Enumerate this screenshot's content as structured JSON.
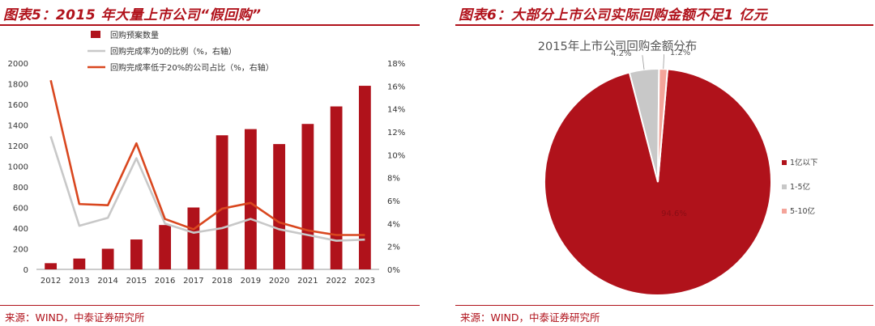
{
  "left": {
    "title": "图表5：2015 年大量上市公司“假回购”",
    "source": "来源：WIND，中泰证券研究所"
  },
  "right": {
    "title": "图表6：大部分上市公司实际回购金额不足1 亿元",
    "source": "来源：WIND，中泰证券研究所"
  },
  "colors": {
    "accent": "#b0121b",
    "grey_line": "#c8c8c8",
    "orange_line": "#d9471f",
    "pink": "#f4a49a"
  },
  "chart_data": [
    {
      "type": "bar",
      "title": "",
      "categories": [
        "2012",
        "2013",
        "2014",
        "2015",
        "2016",
        "2017",
        "2018",
        "2019",
        "2020",
        "2021",
        "2022",
        "2023"
      ],
      "ylim": [
        0,
        2000
      ],
      "y_ticks": [
        "0",
        "200",
        "400",
        "600",
        "800",
        "1000",
        "1200",
        "1400",
        "1600",
        "1800",
        "2000"
      ],
      "y2lim": [
        0,
        18
      ],
      "y2_ticks": [
        "0%",
        "2%",
        "4%",
        "6%",
        "8%",
        "10%",
        "12%",
        "14%",
        "16%",
        "18%"
      ],
      "grid": false,
      "legend_position": "top-left",
      "series": [
        {
          "name": "回购预案数量",
          "kind": "bar",
          "axis": "left",
          "color": "#b0121b",
          "values": [
            60,
            105,
            200,
            290,
            430,
            600,
            1300,
            1360,
            1215,
            1410,
            1580,
            1780
          ]
        },
        {
          "name": "回购完成率为0的比例（%，右轴）",
          "kind": "line",
          "axis": "right",
          "color": "#c8c8c8",
          "values": [
            11.6,
            3.8,
            4.5,
            9.7,
            4.0,
            3.2,
            3.6,
            4.4,
            3.5,
            3.0,
            2.5,
            2.6
          ]
        },
        {
          "name": "回购完成率低于20%的公司占比（%，右轴）",
          "kind": "line",
          "axis": "right",
          "color": "#d9471f",
          "values": [
            16.5,
            5.7,
            5.6,
            11.0,
            4.4,
            3.5,
            5.3,
            5.8,
            4.1,
            3.4,
            3.0,
            3.0
          ]
        }
      ]
    },
    {
      "type": "pie",
      "title": "2015年上市公司回购金额分布",
      "legend_position": "right",
      "slices": [
        {
          "label": "1亿以下",
          "value": 94.6,
          "display": "94.6%",
          "color": "#b0121b"
        },
        {
          "label": "1-5亿",
          "value": 4.2,
          "display": "4.2%",
          "color": "#c8c8c8"
        },
        {
          "label": "5-10亿",
          "value": 1.2,
          "display": "1.2%",
          "color": "#f4a49a"
        }
      ]
    }
  ]
}
